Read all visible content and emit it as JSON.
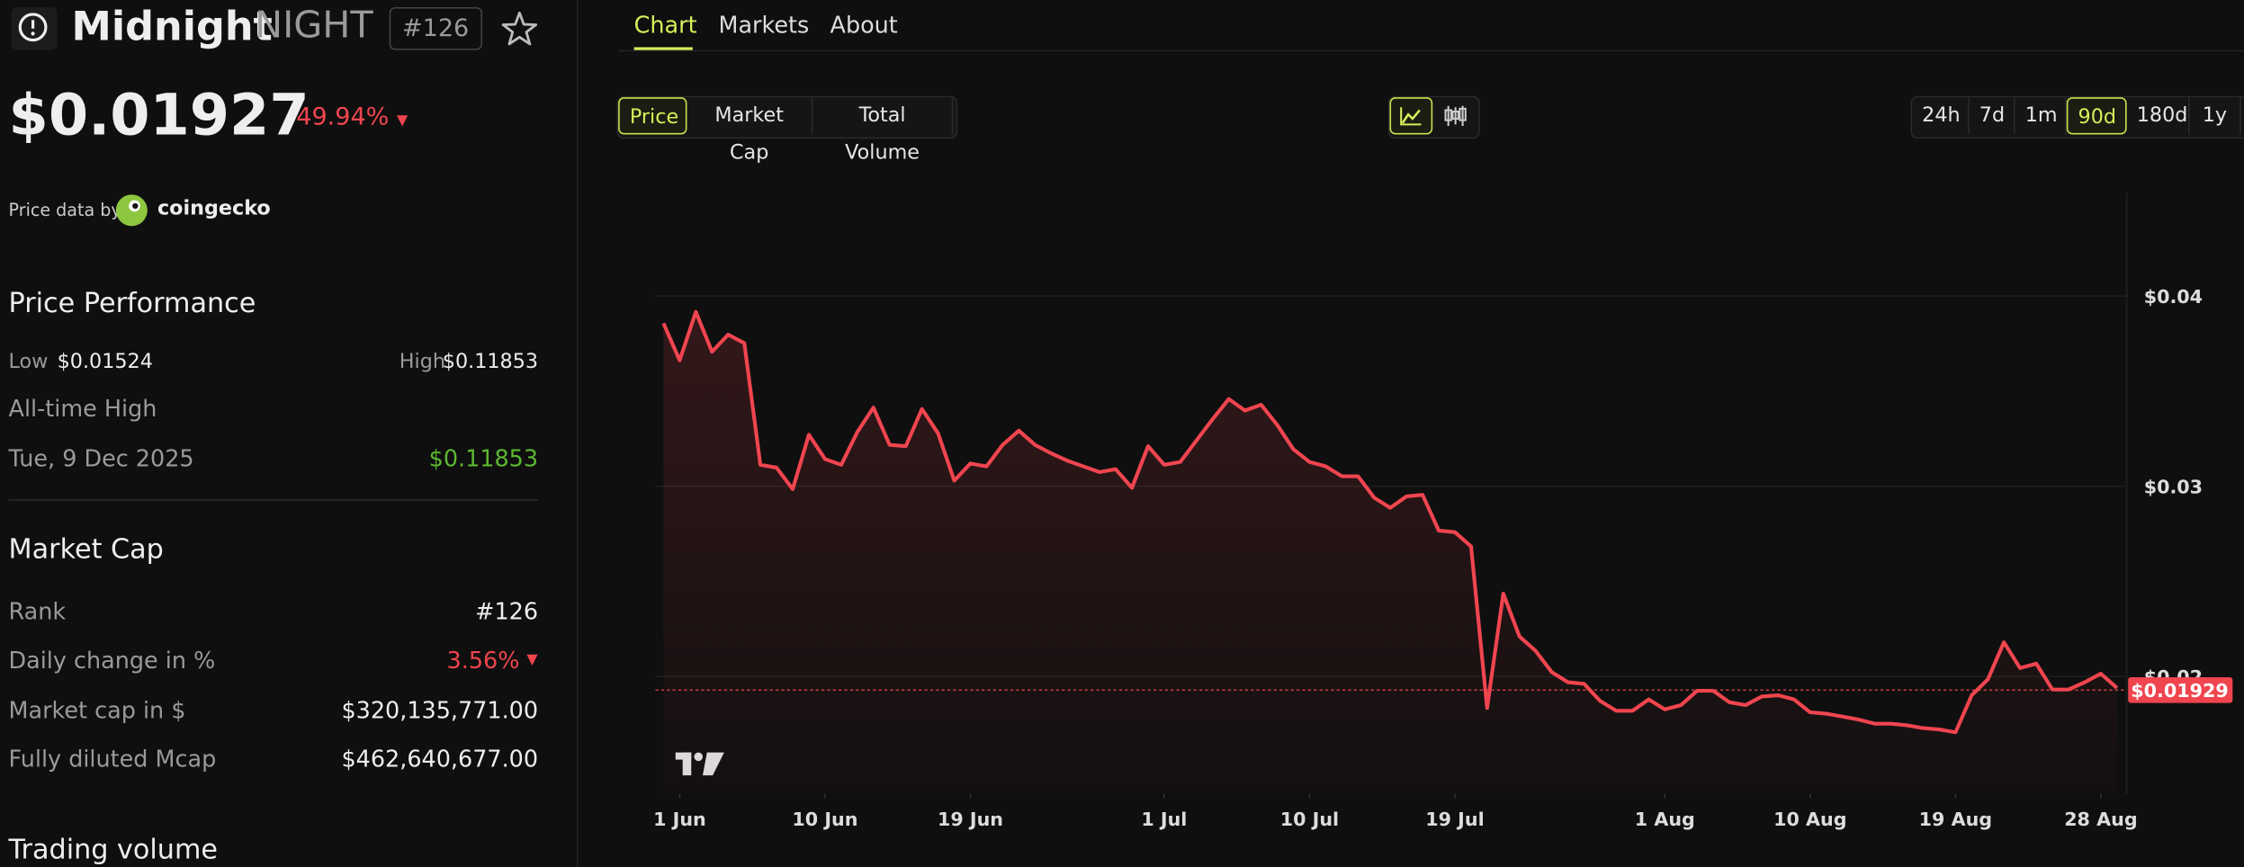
{
  "header": {
    "name": "Midnight",
    "symbol": "NIGHT",
    "rank": "#126"
  },
  "price": {
    "value": "$0.01927",
    "change": "49.94%",
    "source_label": "Price data by",
    "source": "coingecko"
  },
  "performance": {
    "title": "Price Performance",
    "low_label": "Low",
    "low": "$0.01524",
    "high_label": "High",
    "high": "$0.11853",
    "ath_label": "All-time High",
    "ath_date": "Tue, 9 Dec 2025",
    "ath_value": "$0.11853"
  },
  "market_cap": {
    "title": "Market Cap",
    "rows": [
      [
        "Rank",
        "#126"
      ],
      [
        "Daily change in %",
        "3.56%"
      ],
      [
        "Market cap in $",
        "$320,135,771.00"
      ],
      [
        "Fully diluted Mcap",
        "$462,640,677.00"
      ]
    ]
  },
  "trading_volume": {
    "title": "Trading volume"
  },
  "tabs": [
    "Chart",
    "Markets",
    "About"
  ],
  "metric_buttons": [
    "Price",
    "Market Cap",
    "Total Volume"
  ],
  "range_buttons": [
    "24h",
    "7d",
    "1m",
    "90d",
    "180d",
    "1y"
  ],
  "chart_data": {
    "type": "line",
    "x": [
      -1,
      0,
      1,
      2,
      3,
      4,
      5,
      6,
      7,
      8,
      9,
      10,
      11,
      12,
      13,
      14,
      15,
      16,
      17,
      18,
      19,
      20,
      21,
      22,
      23,
      24,
      25,
      26,
      27,
      28,
      29,
      30,
      31,
      32,
      33,
      34,
      35,
      36,
      37,
      38,
      39,
      40,
      41,
      42,
      43,
      44,
      45,
      46,
      47,
      48,
      49,
      50,
      51,
      52,
      53,
      54,
      55,
      56,
      57,
      58,
      59,
      60,
      61,
      62,
      63,
      64,
      65,
      66,
      67,
      68,
      69,
      70,
      71,
      72,
      73,
      74,
      75,
      76,
      77,
      78,
      79,
      80,
      81,
      82,
      83,
      84,
      85,
      86,
      87,
      88,
      89
    ],
    "series": [
      {
        "color": "#f0454f",
        "values": [
          0.03857,
          0.03662,
          0.03917,
          0.03707,
          0.03797,
          0.03752,
          0.03113,
          0.03098,
          0.02985,
          0.03271,
          0.03143,
          0.03113,
          0.03286,
          0.03414,
          0.03218,
          0.03211,
          0.03406,
          0.03278,
          0.0303,
          0.0312,
          0.03105,
          0.03218,
          0.03293,
          0.03218,
          0.03173,
          0.03135,
          0.03105,
          0.03075,
          0.0309,
          0.02992,
          0.03211,
          0.03113,
          0.03128,
          0.03241,
          0.03353,
          0.03459,
          0.03398,
          0.03429,
          0.03323,
          0.03195,
          0.03128,
          0.03105,
          0.03053,
          0.03053,
          0.0294,
          0.02887,
          0.02947,
          0.02955,
          0.02767,
          0.02759,
          0.02684,
          0.01835,
          0.02436,
          0.02211,
          0.02135,
          0.02023,
          0.0197,
          0.01962,
          0.01872,
          0.0182,
          0.0182,
          0.0188,
          0.01827,
          0.0185,
          0.01925,
          0.01925,
          0.01865,
          0.0185,
          0.01895,
          0.01902,
          0.0188,
          0.01812,
          0.01805,
          0.0179,
          0.01774,
          0.01752,
          0.01752,
          0.01744,
          0.01729,
          0.01722,
          0.01707,
          0.01902,
          0.01985,
          0.0218,
          0.02045,
          0.02068,
          0.01932,
          0.01932,
          0.0197,
          0.02015,
          0.0194
        ]
      }
    ],
    "xlim": [
      -1.5,
      89.6
    ],
    "xticks": [
      {
        "value": 0,
        "label": "1 Jun"
      },
      {
        "value": 9,
        "label": "10 Jun"
      },
      {
        "value": 18,
        "label": "19 Jun"
      },
      {
        "value": 30,
        "label": "1 Jul"
      },
      {
        "value": 39,
        "label": "10 Jul"
      },
      {
        "value": 48,
        "label": "19 Jul"
      },
      {
        "value": 61,
        "label": "1 Aug"
      },
      {
        "value": 70,
        "label": "10 Aug"
      },
      {
        "value": 79,
        "label": "19 Aug"
      },
      {
        "value": 88,
        "label": "28 Aug"
      }
    ],
    "ylim": [
      0.01383,
      0.04541
    ],
    "yticks": [
      {
        "value": 0.02,
        "label": "$0.02"
      },
      {
        "value": 0.03,
        "label": "$0.03"
      },
      {
        "value": 0.04,
        "label": "$0.04"
      }
    ],
    "current_price_line": {
      "value": 0.01929,
      "label": "$0.01929"
    },
    "grid": true
  }
}
